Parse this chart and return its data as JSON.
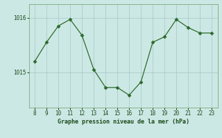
{
  "x": [
    8,
    9,
    10,
    11,
    12,
    13,
    14,
    15,
    16,
    17,
    18,
    19,
    20,
    21,
    22,
    23
  ],
  "y": [
    1015.2,
    1015.55,
    1015.85,
    1015.97,
    1015.68,
    1015.05,
    1014.72,
    1014.72,
    1014.58,
    1014.82,
    1015.55,
    1015.65,
    1015.97,
    1015.82,
    1015.72,
    1015.72
  ],
  "line_color": "#2d6a2d",
  "marker": "D",
  "marker_size": 2.5,
  "bg_color": "#cce8e4",
  "grid_color": "#aacccc",
  "xlabel": "Graphe pression niveau de la mer (hPa)",
  "xlabel_color": "#1a4a1a",
  "tick_color": "#1a4a1a",
  "ytick_labels": [
    "1015",
    "1016"
  ],
  "ytick_vals": [
    1015,
    1016
  ],
  "xticks": [
    8,
    9,
    10,
    11,
    12,
    13,
    14,
    15,
    16,
    17,
    18,
    19,
    20,
    21,
    22,
    23
  ],
  "ylim": [
    1014.35,
    1016.25
  ],
  "xlim": [
    7.5,
    23.5
  ]
}
